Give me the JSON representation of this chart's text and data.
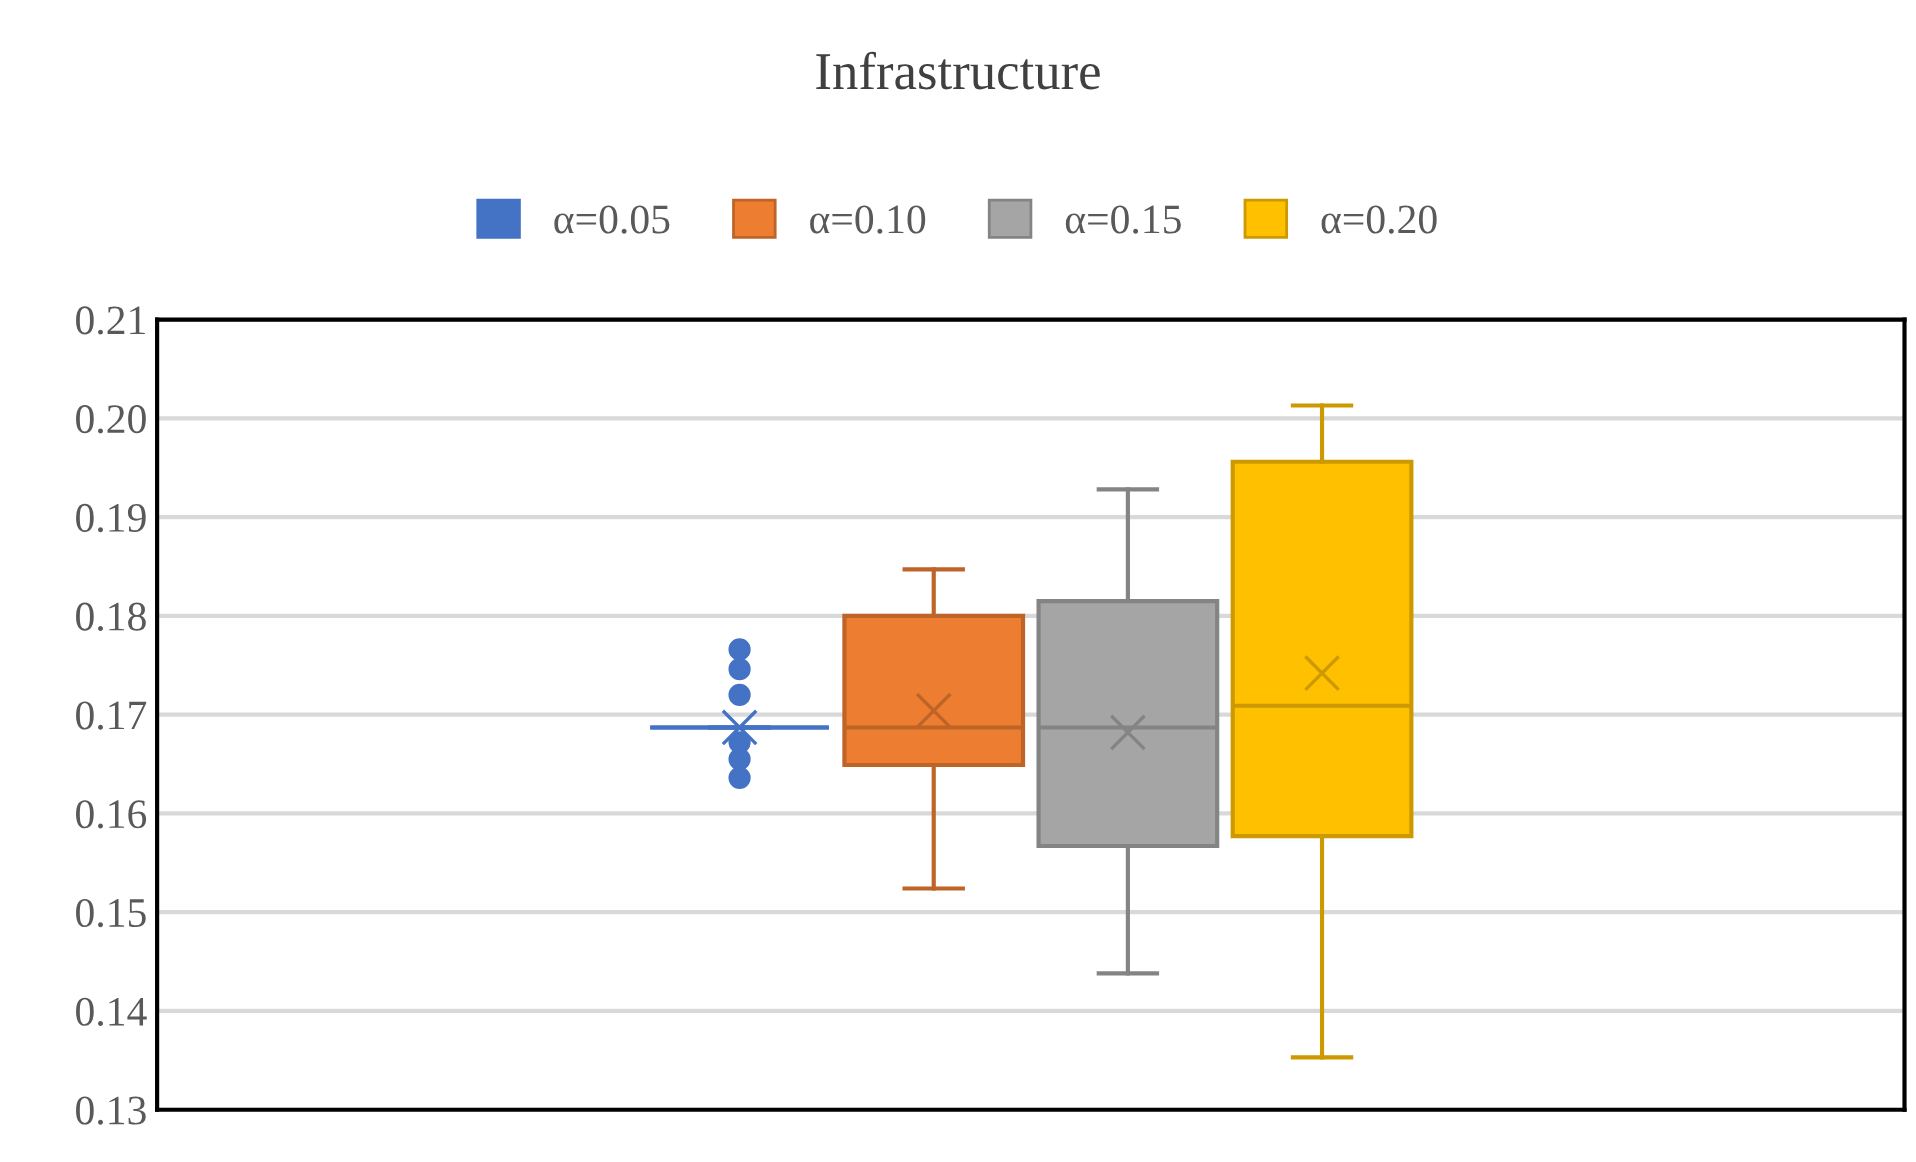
{
  "chart_data": {
    "type": "box",
    "title": "Infrastructure",
    "categories": [
      null
    ],
    "series": [
      {
        "name": "α=0.05",
        "color": "#4472c4",
        "boxes": [
          {
            "low": 0.1687,
            "q1": 0.1687,
            "median": 0.1687,
            "q3": 0.1687,
            "high": 0.1687,
            "mean": 0.1687,
            "outliers": [
              0.1766,
              0.1746,
              0.172,
              0.1672,
              0.1655,
              0.1636
            ]
          }
        ]
      },
      {
        "name": "α=0.10",
        "color": "#ed7d31",
        "boxes": [
          {
            "low": 0.1524,
            "q1": 0.1649,
            "median": 0.1687,
            "q3": 0.18,
            "high": 0.1847,
            "mean": 0.1704
          }
        ]
      },
      {
        "name": "α=0.15",
        "color": "#a5a5a5",
        "boxes": [
          {
            "low": 0.1438,
            "q1": 0.1567,
            "median": 0.1687,
            "q3": 0.1815,
            "high": 0.1928,
            "mean": 0.1682
          }
        ]
      },
      {
        "name": "α=0.20",
        "color": "#ffc000",
        "boxes": [
          {
            "low": 0.1353,
            "q1": 0.1577,
            "median": 0.1709,
            "q3": 0.1956,
            "high": 0.2013,
            "mean": 0.1742
          }
        ]
      }
    ],
    "ylim": [
      0.13,
      0.21
    ],
    "yticks": [
      0.13,
      0.14,
      0.15,
      0.16,
      0.17,
      0.18,
      0.19,
      {
        "value": 0.2,
        "label": "0.20"
      },
      0.21
    ],
    "grid": "y",
    "legend": "top",
    "tick_labels": "y"
  }
}
